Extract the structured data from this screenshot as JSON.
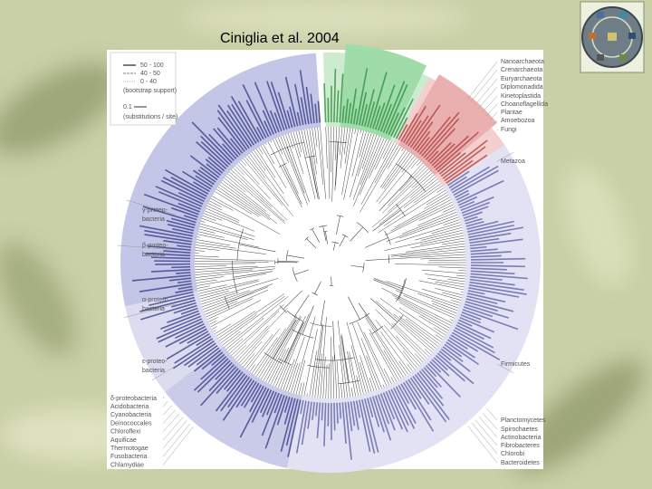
{
  "title": "Ciniglia et al. 2004",
  "legend": {
    "items": [
      "50 - 100",
      "40 - 50",
      "0 - 40"
    ],
    "note": "(bootstrap support)",
    "scale": "0.1",
    "scale_note": "(substitutions / site)"
  },
  "labels": {
    "right": [
      "Nanoarchaeota",
      "Crenarchaeota",
      "Euryarchaeota",
      "Diplomonadida",
      "Kinetoplastida",
      "Choanoflagellida",
      "Plantae",
      "Amoebozoa",
      "Fungi",
      "Metazoa",
      "Firmicutes",
      "Planctomycetes",
      "Spirochaetes",
      "Actinobacteria",
      "Fibrobacteres",
      "Chlorobi",
      "Bacteroidetes"
    ],
    "left": [
      {
        "lines": [
          "γ-proteo-",
          "bacteria"
        ]
      },
      {
        "lines": [
          "β-proteo-",
          "bacteria"
        ]
      },
      {
        "lines": [
          "α-proteo-",
          "bacteria"
        ]
      },
      {
        "lines": [
          "ε-proteo-",
          "bacteria"
        ]
      }
    ],
    "bottom_left": [
      "δ-proteobacteria",
      "Acidobacteria",
      "Cyanobacteria",
      "Deinococcales",
      "Chloroflexi",
      "Aquificae",
      "Thermotogae",
      "Fusobacteria",
      "Chlamydiae"
    ]
  }
}
